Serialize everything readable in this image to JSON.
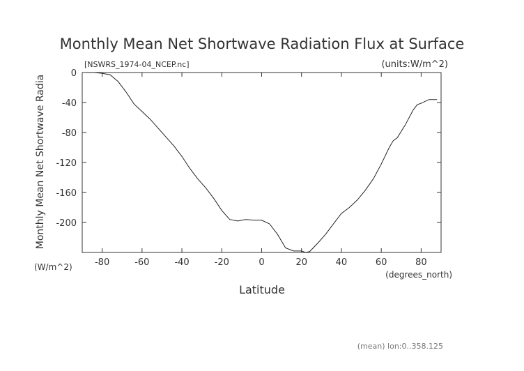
{
  "chart_data": {
    "type": "line",
    "title": "Monthly Mean Net Shortwave Radiation Flux at Surface",
    "subtitle_left": "[NSWRS_1974-04_NCEP.nc]",
    "subtitle_right": "(units:W/m^2)",
    "xlabel": "Latitude",
    "x_units": "(degrees_north)",
    "ylabel": "Monthly Mean Net Shortwave Radia",
    "y_units": "(W/m^2)",
    "footer": "(mean) lon:0..358.125",
    "xlim": [
      -90,
      90
    ],
    "ylim": [
      -240,
      0
    ],
    "x_ticks": [
      -80,
      -60,
      -40,
      -20,
      0,
      20,
      40,
      60,
      80
    ],
    "y_ticks": [
      0,
      -40,
      -80,
      -120,
      -160,
      -200
    ],
    "grid": false,
    "series": [
      {
        "color": "#222222",
        "x": [
          -88,
          -84,
          -80,
          -76,
          -72,
          -68,
          -64,
          -60,
          -56,
          -52,
          -48,
          -44,
          -40,
          -36,
          -32,
          -28,
          -24,
          -20,
          -16,
          -12,
          -8,
          -4,
          0,
          4,
          8,
          12,
          16,
          20,
          22,
          24,
          28,
          32,
          36,
          40,
          44,
          48,
          52,
          56,
          60,
          64,
          66,
          68,
          72,
          76,
          78,
          80,
          84,
          88
        ],
        "y": [
          0,
          0,
          -1,
          -3,
          -12,
          -26,
          -42,
          -52,
          -62,
          -74,
          -86,
          -98,
          -112,
          -128,
          -142,
          -154,
          -168,
          -184,
          -196,
          -198,
          -196,
          -197,
          -197,
          -202,
          -216,
          -234,
          -238,
          -238,
          -240,
          -239,
          -228,
          -216,
          -202,
          -188,
          -180,
          -170,
          -157,
          -142,
          -122,
          -100,
          -91,
          -87,
          -70,
          -50,
          -43,
          -41,
          -36,
          -36
        ]
      }
    ]
  }
}
